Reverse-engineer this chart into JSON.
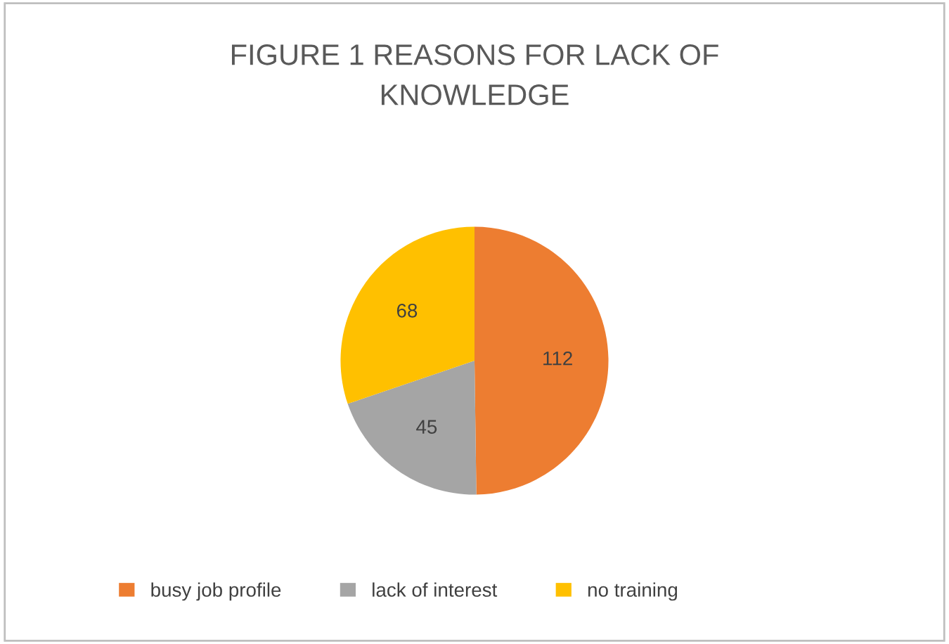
{
  "chart_data": {
    "type": "pie",
    "title": "FIGURE 1 REASONS FOR LACK OF\nKNOWLEDGE",
    "categories": [
      "busy job profile",
      "lack of interest",
      "no training"
    ],
    "values": [
      112,
      45,
      68
    ],
    "colors": [
      "#ed7d31",
      "#a5a5a5",
      "#ffc000"
    ],
    "data_labels": true,
    "legend": "bottom"
  }
}
